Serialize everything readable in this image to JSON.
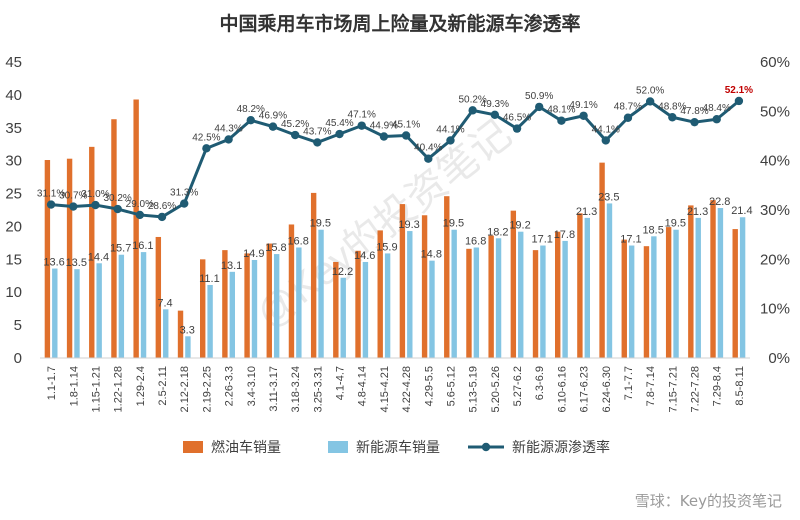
{
  "chart_data": {
    "type": "bar+line",
    "title": "中国乘用车市场周上险量及新能源车渗透率",
    "categories": [
      "1.1-1.7",
      "1.8-1.14",
      "1.15-1.21",
      "1.22-1.28",
      "1.29-2.4",
      "2.5-2.11",
      "2.12-2.18",
      "2.19-2.25",
      "2.26-3.3",
      "3.4-3.10",
      "3.11-3.17",
      "3.18-3.24",
      "3.25-3.31",
      "4.1-4.7",
      "4.8-4.14",
      "4.15-4.21",
      "4.22-4.28",
      "4.29-5.5",
      "5.6-5.12",
      "5.13-5.19",
      "5.20-5.26",
      "5.27-6.2",
      "6.3-6.9",
      "6.10-6.16",
      "6.17-6.23",
      "6.24-6.30",
      "7.1-7.7",
      "7.8-7.14",
      "7.15-7.21",
      "7.22-7.28",
      "7.29-8.4",
      "8.5-8.11"
    ],
    "left_axis": {
      "ticks": [
        "0",
        "5",
        "10",
        "15",
        "20",
        "25",
        "30",
        "35",
        "40",
        "45"
      ],
      "ylim": [
        0,
        45
      ]
    },
    "right_axis": {
      "ticks": [
        "0%",
        "10%",
        "20%",
        "30%",
        "40%",
        "50%",
        "60%"
      ],
      "ylim": [
        0,
        60
      ]
    },
    "series": [
      {
        "name": "燃油车销量",
        "type": "bar",
        "color": "#E0702C",
        "values": [
          30.1,
          30.3,
          32.1,
          36.3,
          39.3,
          18.4,
          7.2,
          15.0,
          16.4,
          15.9,
          17.4,
          20.3,
          25.1,
          14.6,
          16.3,
          19.4,
          23.4,
          21.7,
          24.6,
          16.6,
          18.6,
          22.4,
          16.4,
          19.2,
          22.0,
          29.7,
          18.0,
          17.0,
          19.9,
          23.2,
          24.0,
          19.6
        ],
        "labels": [
          "",
          "",
          "",
          "",
          "",
          "",
          "",
          "",
          "",
          "",
          "",
          "",
          "",
          "",
          "",
          "",
          "",
          "",
          "",
          "",
          "",
          "",
          "",
          "",
          "",
          "",
          "",
          "",
          "",
          "",
          "",
          ""
        ]
      },
      {
        "name": "新能源车销量",
        "type": "bar",
        "color": "#84C5E3",
        "values": [
          13.6,
          13.5,
          14.4,
          15.7,
          16.1,
          7.4,
          3.3,
          11.1,
          13.1,
          14.9,
          15.8,
          16.8,
          19.5,
          12.2,
          14.6,
          15.9,
          19.3,
          14.8,
          19.5,
          16.8,
          18.2,
          19.2,
          17.1,
          17.8,
          21.3,
          23.5,
          17.1,
          18.5,
          19.5,
          21.3,
          22.8,
          21.4
        ],
        "labels": [
          "13.6",
          "13.5",
          "14.4",
          "15.7",
          "16.1",
          "7.4",
          "3.3",
          "11.1",
          "13.1",
          "14.9",
          "15.8",
          "16.8",
          "19.5",
          "12.2",
          "14.6",
          "15.9",
          "19.3",
          "14.8",
          "19.5",
          "16.8",
          "18.2",
          "19.2",
          "17.1",
          "17.8",
          "21.3",
          "23.5",
          "17.1",
          "18.5",
          "19.5",
          "21.3",
          "22.8",
          "21.4"
        ]
      },
      {
        "name": "新能源源渗透率",
        "type": "line",
        "axis": "right",
        "color": "#1F5B73",
        "values": [
          31.1,
          30.7,
          31.0,
          30.2,
          29.0,
          28.6,
          31.3,
          42.5,
          44.3,
          48.2,
          46.9,
          45.2,
          43.7,
          45.4,
          47.1,
          44.9,
          45.1,
          40.4,
          44.1,
          50.2,
          49.3,
          46.5,
          50.9,
          48.1,
          49.1,
          44.1,
          48.7,
          52.0,
          48.8,
          47.8,
          48.4,
          52.1
        ],
        "labels": [
          "31.1%",
          "30.7%",
          "31.0%",
          "30.2%",
          "29.0%",
          "28.6%",
          "31.3%",
          "42.5%",
          "44.3%",
          "48.2%",
          "46.9%",
          "45.2%",
          "43.7%",
          "45.4%",
          "47.1%",
          "44.9%",
          "45.1%",
          "40.4%",
          "44.1%",
          "50.2%",
          "49.3%",
          "46.5%",
          "50.9%",
          "48.1%",
          "49.1%",
          "44.1%",
          "48.7%",
          "52.0%",
          "48.8%",
          "47.8%",
          "48.4%",
          "52.1%"
        ],
        "highlight_color": "#C00000"
      }
    ],
    "legend": {
      "placement": "bottom",
      "items": [
        "燃油车销量",
        "新能源车销量",
        "新能源源渗透率"
      ]
    }
  },
  "watermark": {
    "corner": "雪球：Key的投资笔记",
    "diagonal": "@Key的投资笔记"
  }
}
